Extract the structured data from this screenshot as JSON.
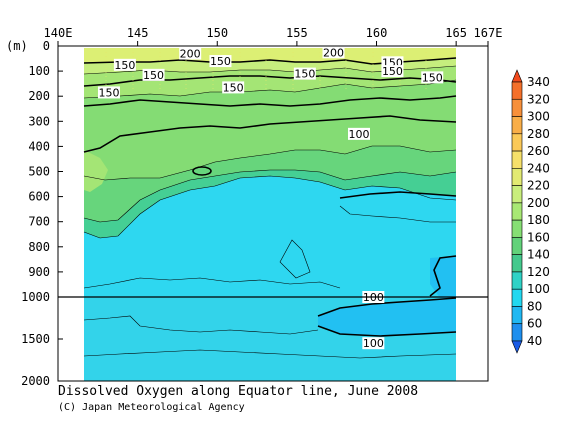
{
  "chart_data": {
    "type": "contour",
    "title": "Dissolved Oxygen along Equator line, June 2008",
    "credit": "(C) Japan Meteorological Agency",
    "xlabel": "",
    "ylabel": "(m)",
    "x_ticks": [
      "140E",
      "145",
      "150",
      "155",
      "160",
      "165",
      "167E"
    ],
    "x_tick_values": [
      140,
      145,
      150,
      155,
      160,
      165,
      167
    ],
    "xlim": [
      140,
      167
    ],
    "y_ticks_upper": [
      "0",
      "100",
      "200",
      "300",
      "400",
      "500",
      "600",
      "700",
      "800",
      "900",
      "1000"
    ],
    "y_ticks_lower": [
      "1500",
      "2000"
    ],
    "ylim_upper": [
      0,
      1000
    ],
    "ylim_lower": [
      1000,
      2000
    ],
    "data_extent_lon": [
      142,
      165
    ],
    "colorbar": {
      "levels": [
        "340",
        "320",
        "300",
        "280",
        "260",
        "240",
        "220",
        "200",
        "180",
        "160",
        "140",
        "120",
        "100",
        "80",
        "60",
        "40"
      ],
      "colors": [
        "#f24a1c",
        "#f4702a",
        "#f7903a",
        "#f9ae48",
        "#fbc958",
        "#f6e06a",
        "#e2ea72",
        "#c9ee7c",
        "#a8e874",
        "#86df74",
        "#62d27a",
        "#44c98d",
        "#2fd2c6",
        "#22d8f0",
        "#20b8f2",
        "#1e8fee",
        "#1a5ce6"
      ]
    },
    "contour_labels": [
      {
        "text": "200",
        "lon": 148.3,
        "depth": 30
      },
      {
        "text": "200",
        "lon": 157.3,
        "depth": 25
      },
      {
        "text": "150",
        "lon": 144.2,
        "depth": 75
      },
      {
        "text": "150",
        "lon": 150.2,
        "depth": 60
      },
      {
        "text": "150",
        "lon": 161.0,
        "depth": 65
      },
      {
        "text": "150",
        "lon": 146.0,
        "depth": 115
      },
      {
        "text": "150",
        "lon": 155.5,
        "depth": 110
      },
      {
        "text": "150",
        "lon": 161.0,
        "depth": 100
      },
      {
        "text": "150",
        "lon": 163.5,
        "depth": 125
      },
      {
        "text": "150",
        "lon": 151.0,
        "depth": 165
      },
      {
        "text": "150",
        "lon": 143.2,
        "depth": 185
      },
      {
        "text": "100",
        "lon": 158.9,
        "depth": 350
      },
      {
        "text": "100",
        "lon": 159.8,
        "depth": 1000
      },
      {
        "text": "100",
        "lon": 159.8,
        "depth": 1550
      }
    ]
  }
}
